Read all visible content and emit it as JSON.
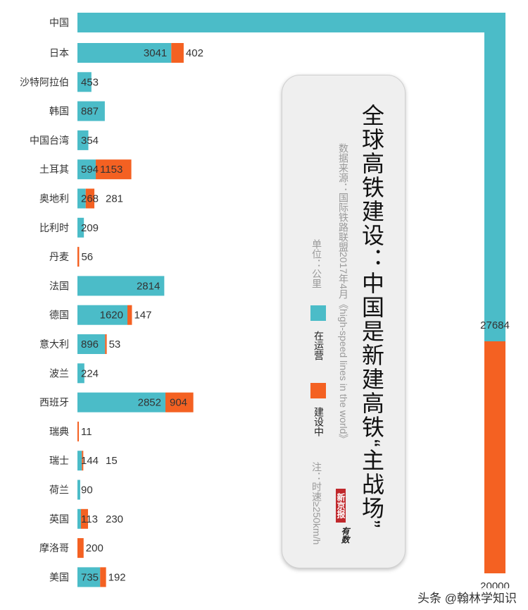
{
  "chart_data": {
    "type": "bar",
    "orientation": "horizontal",
    "stacked": true,
    "title": "全球高铁建设：中国是新建高铁“主战场”",
    "source": "数据来源：国际铁路联盟2017年4月《high-speed lines in the world》",
    "unit": "单位：公里",
    "note": "注：时速≥250km/h",
    "categories": [
      "中国",
      "日本",
      "沙特阿拉伯",
      "韩国",
      "中国台湾",
      "土耳其",
      "奥地利",
      "比利时",
      "丹麦",
      "法国",
      "德国",
      "意大利",
      "波兰",
      "西班牙",
      "瑞典",
      "瑞士",
      "荷兰",
      "英国",
      "摩洛哥",
      "美国"
    ],
    "series": [
      {
        "name": "在运营",
        "color": "#4bbcc8",
        "values": [
          27684,
          3041,
          453,
          887,
          354,
          594,
          268,
          209,
          0,
          2814,
          1620,
          896,
          224,
          2852,
          0,
          144,
          90,
          113,
          0,
          735
        ]
      },
      {
        "name": "建设中",
        "color": "#f46122",
        "values": [
          20000,
          402,
          0,
          0,
          0,
          1153,
          281,
          0,
          56,
          0,
          147,
          53,
          0,
          904,
          11,
          15,
          0,
          230,
          200,
          192
        ]
      }
    ],
    "labels": [
      [
        "27684",
        "20000"
      ],
      [
        "3041",
        "402"
      ],
      [
        "453",
        ""
      ],
      [
        "887",
        ""
      ],
      [
        "354",
        ""
      ],
      [
        "594",
        "1153"
      ],
      [
        "268",
        "281"
      ],
      [
        "209",
        ""
      ],
      [
        "",
        "56"
      ],
      [
        "2814",
        ""
      ],
      [
        "1620",
        "147"
      ],
      [
        "896",
        "53"
      ],
      [
        "224",
        ""
      ],
      [
        "2852",
        "904"
      ],
      [
        "",
        "11"
      ],
      [
        "144",
        "15"
      ],
      [
        "90",
        ""
      ],
      [
        "113",
        "230"
      ],
      [
        "",
        "200"
      ],
      [
        "735",
        "192"
      ]
    ]
  },
  "legend": {
    "operating": "在运营",
    "building": "建设中"
  },
  "branding": {
    "logo": "新京报",
    "logo_sub": "有数"
  },
  "watermark": "头条 @翰林学知识"
}
